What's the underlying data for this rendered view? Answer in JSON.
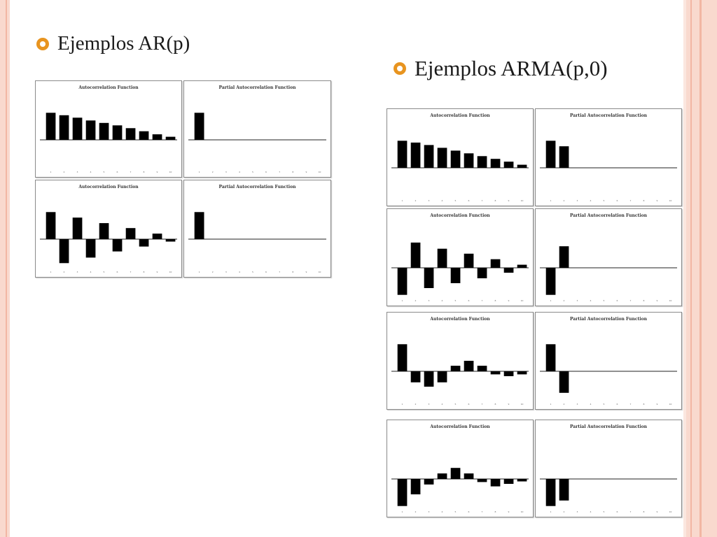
{
  "slide": {
    "bullets": [
      {
        "text": "Ejemplos AR(p)"
      },
      {
        "text": "Ejemplos  ARMA(p,0)"
      }
    ]
  },
  "colors": {
    "bullet": "#e8941f",
    "frame": "#f9d9ce",
    "bars": "#000000"
  },
  "icons": {
    "bullet": "ring-bullet-icon"
  },
  "chart_data": [
    {
      "type": "bar",
      "title": "Autocorrelation Function",
      "categories": [
        "1",
        "2",
        "3",
        "4",
        "5",
        "6",
        "7",
        "8",
        "9",
        "10"
      ],
      "values": [
        0.88,
        0.8,
        0.72,
        0.63,
        0.55,
        0.47,
        0.38,
        0.28,
        0.18,
        0.1
      ]
    },
    {
      "type": "bar",
      "title": "Partial Autocorrelation Function",
      "categories": [
        "1",
        "2",
        "3",
        "4",
        "5",
        "6",
        "7",
        "8",
        "9",
        "10"
      ],
      "values": [
        0.88,
        0,
        0,
        0,
        0,
        0,
        0,
        0,
        0,
        0
      ]
    },
    {
      "type": "bar",
      "title": "Autocorrelation Function",
      "categories": [
        "1",
        "2",
        "3",
        "4",
        "5",
        "6",
        "7",
        "8",
        "9",
        "10"
      ],
      "values": [
        0.88,
        -0.78,
        0.7,
        -0.6,
        0.52,
        -0.4,
        0.36,
        -0.24,
        0.18,
        -0.08
      ]
    },
    {
      "type": "bar",
      "title": "Partial Autocorrelation Function",
      "categories": [
        "1",
        "2",
        "3",
        "4",
        "5",
        "6",
        "7",
        "8",
        "9",
        "10"
      ],
      "values": [
        0.88,
        0,
        0,
        0,
        0,
        0,
        0,
        0,
        0,
        0
      ]
    },
    {
      "type": "bar",
      "title": "Autocorrelation Function",
      "categories": [
        "1",
        "2",
        "3",
        "4",
        "5",
        "6",
        "7",
        "8",
        "9",
        "10"
      ],
      "values": [
        0.88,
        0.82,
        0.74,
        0.65,
        0.56,
        0.47,
        0.38,
        0.29,
        0.2,
        0.1
      ]
    },
    {
      "type": "bar",
      "title": "Partial Autocorrelation Function",
      "categories": [
        "1",
        "2",
        "3",
        "4",
        "5",
        "6",
        "7",
        "8",
        "9",
        "10"
      ],
      "values": [
        0.88,
        0.7,
        0,
        0,
        0,
        0,
        0,
        0,
        0,
        0
      ]
    },
    {
      "type": "bar",
      "title": "Autocorrelation Function",
      "categories": [
        "1",
        "2",
        "3",
        "4",
        "5",
        "6",
        "7",
        "8",
        "9",
        "10"
      ],
      "values": [
        -0.88,
        0.82,
        -0.66,
        0.62,
        -0.5,
        0.46,
        -0.34,
        0.28,
        -0.16,
        0.1
      ]
    },
    {
      "type": "bar",
      "title": "Partial Autocorrelation Function",
      "categories": [
        "1",
        "2",
        "3",
        "4",
        "5",
        "6",
        "7",
        "8",
        "9",
        "10"
      ],
      "values": [
        -0.88,
        0.7,
        0,
        0,
        0,
        0,
        0,
        0,
        0,
        0
      ]
    },
    {
      "type": "bar",
      "title": "Autocorrelation Function",
      "categories": [
        "1",
        "2",
        "3",
        "4",
        "5",
        "6",
        "7",
        "8",
        "9",
        "10"
      ],
      "values": [
        0.88,
        -0.36,
        -0.5,
        -0.36,
        0.18,
        0.34,
        0.18,
        -0.1,
        -0.16,
        -0.1
      ]
    },
    {
      "type": "bar",
      "title": "Partial Autocorrelation Function",
      "categories": [
        "1",
        "2",
        "3",
        "4",
        "5",
        "6",
        "7",
        "8",
        "9",
        "10"
      ],
      "values": [
        0.88,
        -0.7,
        0,
        0,
        0,
        0,
        0,
        0,
        0,
        0
      ]
    },
    {
      "type": "bar",
      "title": "Autocorrelation Function",
      "categories": [
        "1",
        "2",
        "3",
        "4",
        "5",
        "6",
        "7",
        "8",
        "9",
        "10"
      ],
      "values": [
        -0.88,
        -0.5,
        -0.18,
        0.18,
        0.36,
        0.18,
        -0.1,
        -0.24,
        -0.16,
        -0.08
      ]
    },
    {
      "type": "bar",
      "title": "Partial Autocorrelation Function",
      "categories": [
        "1",
        "2",
        "3",
        "4",
        "5",
        "6",
        "7",
        "8",
        "9",
        "10"
      ],
      "values": [
        -0.88,
        -0.7,
        0,
        0,
        0,
        0,
        0,
        0,
        0,
        0
      ]
    }
  ]
}
